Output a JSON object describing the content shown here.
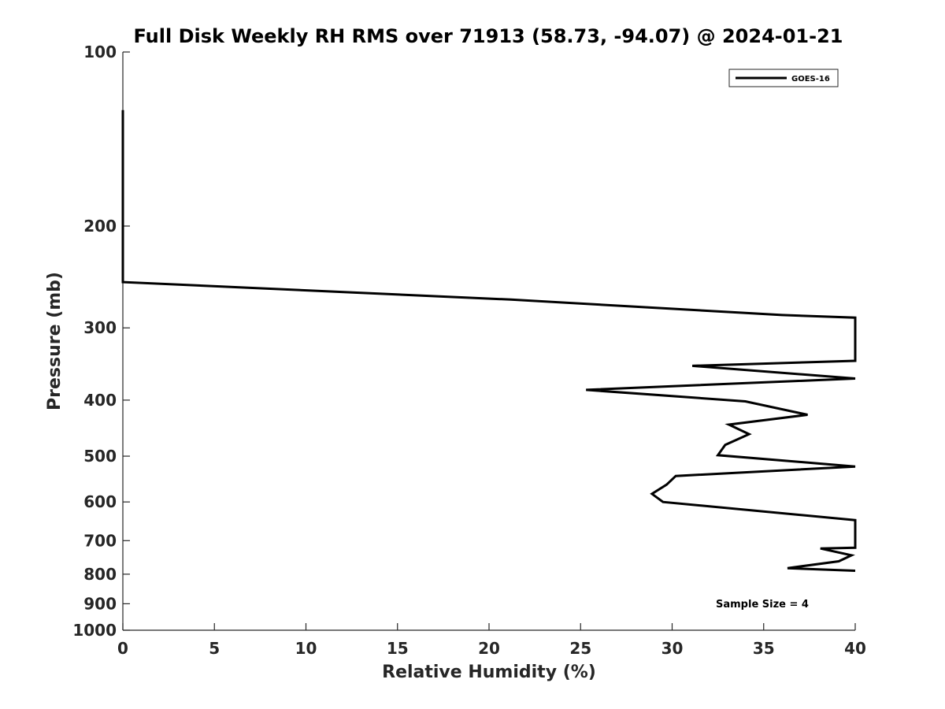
{
  "chart_data": {
    "type": "line",
    "title": "Full Disk Weekly RH RMS over 71913 (58.73, -94.07) @ 2024-01-21",
    "xlabel": "Relative Humidity (%)",
    "ylabel": "Pressure (mb)",
    "xlim": [
      0,
      40
    ],
    "ylim": [
      100,
      1000
    ],
    "yscale": "log",
    "y_reversed": true,
    "grid": false,
    "legend_position": "top-right",
    "x_ticks": [
      0,
      5,
      10,
      15,
      20,
      25,
      30,
      35,
      40
    ],
    "y_ticks": [
      100,
      200,
      300,
      400,
      500,
      600,
      700,
      800,
      900,
      1000
    ],
    "series": [
      {
        "name": "GOES-16",
        "color": "#000000",
        "points": [
          {
            "x": 0,
            "y": 126
          },
          {
            "x": 0,
            "y": 200
          },
          {
            "x": 0,
            "y": 250
          },
          {
            "x": 21.2,
            "y": 268
          },
          {
            "x": 36.0,
            "y": 285
          },
          {
            "x": 40,
            "y": 288
          },
          {
            "x": 40,
            "y": 342
          },
          {
            "x": 31.1,
            "y": 349
          },
          {
            "x": 40,
            "y": 367
          },
          {
            "x": 25.3,
            "y": 384
          },
          {
            "x": 34.0,
            "y": 402
          },
          {
            "x": 37.4,
            "y": 424
          },
          {
            "x": 33.1,
            "y": 441
          },
          {
            "x": 34.2,
            "y": 458
          },
          {
            "x": 32.9,
            "y": 478
          },
          {
            "x": 32.5,
            "y": 498
          },
          {
            "x": 40,
            "y": 521
          },
          {
            "x": 30.2,
            "y": 541
          },
          {
            "x": 29.7,
            "y": 560
          },
          {
            "x": 28.9,
            "y": 581
          },
          {
            "x": 29.5,
            "y": 600
          },
          {
            "x": 40,
            "y": 645
          },
          {
            "x": 40,
            "y": 720
          },
          {
            "x": 38.1,
            "y": 722
          },
          {
            "x": 39.8,
            "y": 742
          },
          {
            "x": 39.1,
            "y": 760
          },
          {
            "x": 36.3,
            "y": 781
          },
          {
            "x": 40,
            "y": 789
          }
        ]
      }
    ],
    "annotation": "Sample Size = 4"
  }
}
